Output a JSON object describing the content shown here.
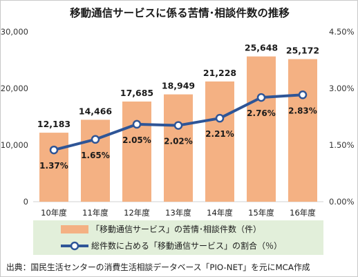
{
  "chart_data": {
    "type": "bar",
    "title": "移動通信サービスに係る苦情･相談件数の推移",
    "categories": [
      "10年度",
      "11年度",
      "12年度",
      "13年度",
      "14年度",
      "15年度",
      "16年度"
    ],
    "series": [
      {
        "name": "「移動通信サービス」の苦情･相談件数（件）",
        "type": "bar",
        "axis": "left",
        "values": [
          12183,
          14466,
          17685,
          18949,
          21228,
          25648,
          25172
        ],
        "labels": [
          "12,183",
          "14,466",
          "17,685",
          "18,949",
          "21,228",
          "25,648",
          "25,172"
        ],
        "color": "#f4b183"
      },
      {
        "name": "総件数に占める「移動通信サービス」の割合（％）",
        "type": "line",
        "axis": "right",
        "values": [
          1.37,
          1.65,
          2.05,
          2.02,
          2.21,
          2.76,
          2.83
        ],
        "labels": [
          "1.37%",
          "1.65%",
          "2.05%",
          "2.02%",
          "2.21%",
          "2.76%",
          "2.83%"
        ],
        "color": "#2e5597"
      }
    ],
    "y_left": {
      "min": 0,
      "max": 30000,
      "ticks": [
        0,
        10000,
        20000,
        30000
      ],
      "tick_labels": [
        "0",
        "10,000",
        "20,000",
        "30,000"
      ]
    },
    "y_right": {
      "min": 0,
      "max": 4.5,
      "ticks": [
        0,
        1.5,
        3.0,
        4.5
      ],
      "tick_labels": [
        "0.00%",
        "1.50%",
        "3.00%",
        "4.50%"
      ]
    },
    "grid": false,
    "legend_position": "bottom",
    "legend_background": "#e2efda",
    "source_note": "出典：国民生活センターの消費生活相談データベース「PIO-NET」を元にMCA作成"
  }
}
